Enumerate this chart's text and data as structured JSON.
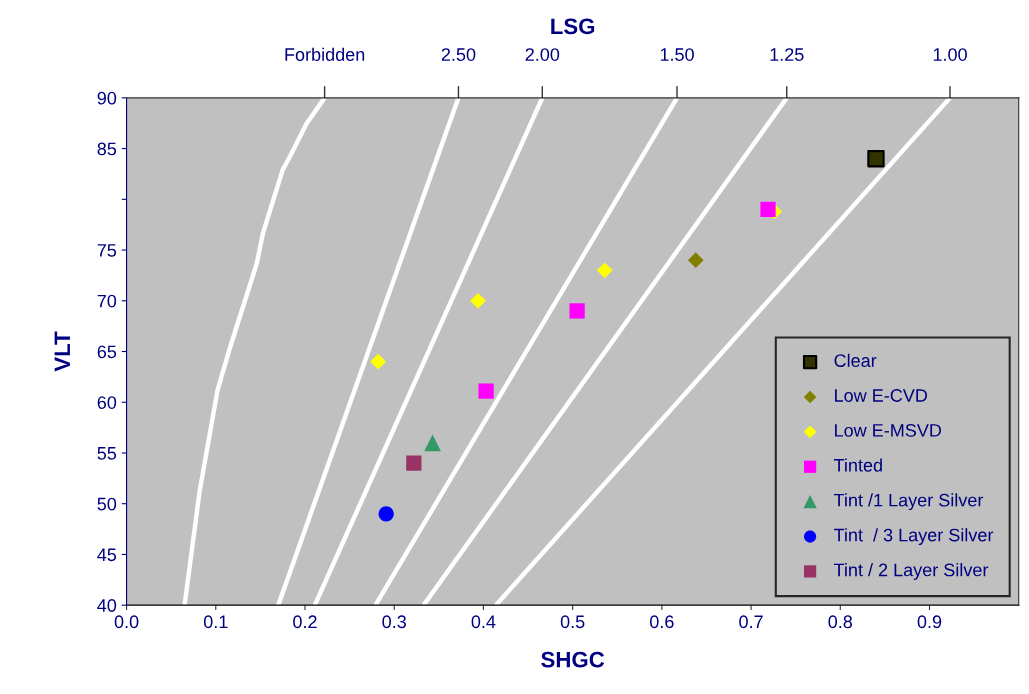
{
  "chart_data": {
    "type": "scatter",
    "title": "LSG",
    "xlabel": "SHGC",
    "ylabel": "VLT",
    "xlim": [
      0,
      1.0
    ],
    "ylim": [
      40,
      90
    ],
    "xticks": [
      {
        "value": 0,
        "label": "0.0"
      },
      0.1,
      0.2,
      0.3,
      0.4,
      0.5,
      0.6,
      0.7,
      0.8,
      0.9
    ],
    "yticks": [
      40,
      45,
      50,
      55,
      60,
      65,
      70,
      75,
      {
        "value": 80,
        "label": null
      },
      85,
      90
    ],
    "annotations": [
      {
        "text": "Forbidden",
        "x": 0.222,
        "y": 90
      },
      {
        "text": "2.50",
        "x": 0.372,
        "y": 90
      },
      {
        "text": "2.00",
        "x": 0.466,
        "y": 90
      },
      {
        "text": "1.50",
        "x": 0.617,
        "y": 90
      },
      {
        "text": "1.25",
        "x": 0.74,
        "y": 90
      },
      {
        "text": "1.00",
        "x": 0.923,
        "y": 90
      }
    ],
    "grid": false,
    "legend": "bottom right",
    "series": [
      {
        "type": "line",
        "color": "#ffffff",
        "x": [
          0.065,
          0.082,
          0.102,
          0.116,
          0.146,
          0.153,
          0.175,
          0.183,
          0.202,
          0.222
        ],
        "values": [
          40,
          51.3,
          61.2,
          65.4,
          73.7,
          76.7,
          82.9,
          84.2,
          87.5,
          90
        ]
      },
      {
        "type": "line",
        "color": "#ffffff",
        "x": [
          0.17,
          0.372
        ],
        "values": [
          40,
          90
        ]
      },
      {
        "type": "line",
        "color": "#ffffff",
        "x": [
          0.211,
          0.466
        ],
        "values": [
          40,
          90
        ]
      },
      {
        "type": "line",
        "color": "#ffffff",
        "x": [
          0.279,
          0.617
        ],
        "values": [
          40,
          90
        ]
      },
      {
        "type": "line",
        "color": "#ffffff",
        "x": [
          0.333,
          0.74
        ],
        "values": [
          40,
          90
        ]
      },
      {
        "type": "line",
        "color": "#ffffff",
        "x": [
          0.414,
          0.923
        ],
        "values": [
          40,
          90
        ]
      },
      {
        "name": "Clear",
        "marker": "square",
        "color": "#333300",
        "x": [
          0.84
        ],
        "values": [
          84
        ]
      },
      {
        "name": "Low E-CVD",
        "marker": "diamond",
        "color": "#808000",
        "x": [
          0.638
        ],
        "values": [
          74
        ]
      },
      {
        "name": "Low E-MSVD",
        "marker": "diamond",
        "color": "#ffff00",
        "x": [
          0.282,
          0.394,
          0.536,
          0.726
        ],
        "values": [
          64,
          70,
          73,
          78.8
        ]
      },
      {
        "name": "Tinted",
        "marker": "square",
        "color": "#ff00ff",
        "x": [
          0.403,
          0.505,
          0.719
        ],
        "values": [
          61.1,
          69,
          79
        ]
      },
      {
        "name": "Tint /1 Layer Silver",
        "marker": "triangle",
        "color": "#339966",
        "x": [
          0.343
        ],
        "values": [
          56
        ]
      },
      {
        "name": "Tint  / 3 Layer Silver",
        "marker": "circle",
        "color": "#0000ff",
        "x": [
          0.291
        ],
        "values": [
          49
        ]
      },
      {
        "name": "Tint / 2 Layer Silver",
        "marker": "square",
        "color": "#993366",
        "x": [
          0.322
        ],
        "values": [
          54
        ]
      }
    ]
  }
}
